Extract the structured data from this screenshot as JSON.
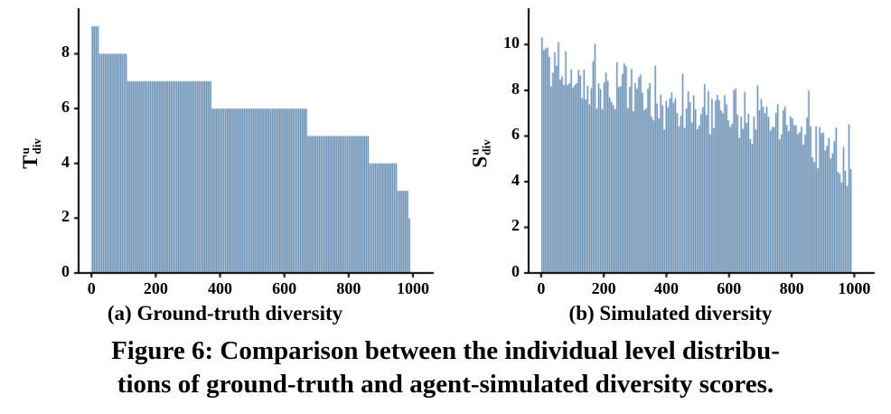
{
  "figure": {
    "caption_lines": [
      "Figure 6: Comparison between the individual level distribu-",
      "tions of ground-truth and agent-simulated diversity scores."
    ]
  },
  "style": {
    "bar_color": "#4e7ba6",
    "axis_color": "#000000",
    "background": "#ffffff"
  },
  "chart_data": [
    {
      "type": "bar",
      "title": "(a) Ground-truth diversity",
      "ylabel": {
        "main": "T",
        "sup": "u",
        "sub": "div"
      },
      "xlabel": "",
      "xlim": [
        -40,
        1045
      ],
      "ylim": [
        0,
        9.5
      ],
      "xticks": [
        0,
        200,
        400,
        600,
        800,
        1000
      ],
      "yticks": [
        0,
        2,
        4,
        6,
        8
      ],
      "grid": false,
      "legend": false,
      "n_bars": 170,
      "x_max_data": 992,
      "steps": [
        {
          "from": 0,
          "to": 25,
          "value": 9
        },
        {
          "from": 25,
          "to": 112,
          "value": 8
        },
        {
          "from": 112,
          "to": 375,
          "value": 7
        },
        {
          "from": 375,
          "to": 670,
          "value": 6
        },
        {
          "from": 670,
          "to": 862,
          "value": 5
        },
        {
          "from": 862,
          "to": 952,
          "value": 4
        },
        {
          "from": 952,
          "to": 984,
          "value": 3
        },
        {
          "from": 984,
          "to": 992,
          "value": 2
        }
      ]
    },
    {
      "type": "bar",
      "title": "(b) Simulated diversity",
      "ylabel": {
        "main": "S",
        "sup": "u",
        "sub": "div"
      },
      "xlabel": "",
      "xlim": [
        -40,
        1045
      ],
      "ylim": [
        0,
        11.4
      ],
      "xticks": [
        0,
        200,
        400,
        600,
        800,
        1000
      ],
      "yticks": [
        0,
        2,
        4,
        6,
        8,
        10
      ],
      "grid": false,
      "legend": false,
      "n_bars": 170,
      "x_max_data": 992,
      "trend": [
        [
          0,
          9.7
        ],
        [
          50,
          9.0
        ],
        [
          120,
          8.5
        ],
        [
          200,
          8.2
        ],
        [
          300,
          8.1
        ],
        [
          400,
          7.3
        ],
        [
          500,
          7.3
        ],
        [
          600,
          7.1
        ],
        [
          700,
          6.7
        ],
        [
          800,
          6.3
        ],
        [
          880,
          5.6
        ],
        [
          940,
          4.8
        ],
        [
          992,
          4.2
        ]
      ],
      "noise": 1.15,
      "clamp": [
        3.8,
        11.0
      ],
      "seed": 12
    }
  ]
}
